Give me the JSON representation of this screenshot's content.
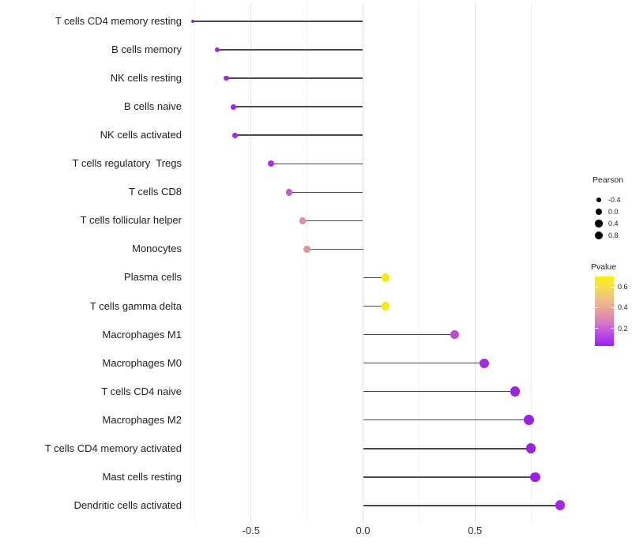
{
  "chart_data": {
    "type": "lollipop",
    "title": "",
    "xlabel": "",
    "ylabel": "",
    "x_ticks": [
      {
        "value": -0.5,
        "label": "-0.5"
      },
      {
        "value": 0.0,
        "label": "0.0"
      },
      {
        "value": 0.5,
        "label": "0.5"
      }
    ],
    "minor_gridlines": [
      -0.75,
      -0.25,
      0.25,
      0.75
    ],
    "xlim": [
      -0.785,
      0.93
    ],
    "rows": [
      {
        "label": "T cells CD4 memory resting",
        "pearson": -0.76,
        "pvalue": 0.001,
        "color": "#9a1fe4"
      },
      {
        "label": "B cells memory",
        "pearson": -0.65,
        "pvalue": 0.01,
        "color": "#9f27e0"
      },
      {
        "label": "NK cells resting",
        "pearson": -0.61,
        "pvalue": 0.015,
        "color": "#a029df"
      },
      {
        "label": "B cells naive",
        "pearson": -0.58,
        "pvalue": 0.02,
        "color": "#a12adf"
      },
      {
        "label": "NK cells activated",
        "pearson": -0.57,
        "pvalue": 0.022,
        "color": "#a12adf"
      },
      {
        "label": "T cells regulatory  Tregs",
        "pearson": -0.41,
        "pvalue": 0.065,
        "color": "#a832dc"
      },
      {
        "label": "T cells CD8",
        "pearson": -0.33,
        "pvalue": 0.22,
        "color": "#c25fc7"
      },
      {
        "label": "T cells follicular helper",
        "pearson": -0.27,
        "pvalue": 0.3,
        "color": "#dd8da5"
      },
      {
        "label": "Monocytes",
        "pearson": -0.25,
        "pvalue": 0.33,
        "color": "#e0929b"
      },
      {
        "label": "Plasma cells",
        "pearson": 0.1,
        "pvalue": 0.67,
        "color": "#f4ee00"
      },
      {
        "label": "T cells gamma delta",
        "pearson": 0.1,
        "pvalue": 0.66,
        "color": "#f2ec08"
      },
      {
        "label": "Macrophages M1",
        "pearson": 0.41,
        "pvalue": 0.13,
        "color": "#b44fd8"
      },
      {
        "label": "Macrophages M0",
        "pearson": 0.54,
        "pvalue": 0.04,
        "color": "#a42ce1"
      },
      {
        "label": "T cells CD4 naive",
        "pearson": 0.68,
        "pvalue": 0.012,
        "color": "#9e24e3"
      },
      {
        "label": "Macrophages M2",
        "pearson": 0.74,
        "pvalue": 0.006,
        "color": "#9c21e5"
      },
      {
        "label": "T cells CD4 memory activated",
        "pearson": 0.75,
        "pvalue": 0.006,
        "color": "#9c21e5"
      },
      {
        "label": "Mast cells resting",
        "pearson": 0.77,
        "pvalue": 0.004,
        "color": "#9b20e6"
      },
      {
        "label": "Dendritic cells activated",
        "pearson": 0.88,
        "pvalue": 0.001,
        "color": "#a326e9"
      }
    ],
    "legend_size": {
      "title": "Pearson",
      "entries": [
        {
          "value": -0.4,
          "label": "-0.4"
        },
        {
          "value": 0.0,
          "label": "0.0"
        },
        {
          "value": 0.4,
          "label": "0.4"
        },
        {
          "value": 0.8,
          "label": "0.8"
        }
      ],
      "dot_color": "#000000"
    },
    "legend_color": {
      "title": "Pvalue",
      "range": [
        0.03,
        0.7
      ],
      "ticks": [
        {
          "value": 0.6,
          "label": "0.6"
        },
        {
          "value": 0.4,
          "label": "0.4"
        },
        {
          "value": 0.2,
          "label": "0.2"
        }
      ],
      "gradient_top_to_bottom": [
        {
          "stop": 0.0,
          "color": "#faf00a"
        },
        {
          "stop": 0.15,
          "color": "#f6de4e"
        },
        {
          "stop": 0.3,
          "color": "#f1c47e"
        },
        {
          "stop": 0.43,
          "color": "#eaaa96"
        },
        {
          "stop": 0.55,
          "color": "#e392a6"
        },
        {
          "stop": 0.67,
          "color": "#d678c2"
        },
        {
          "stop": 0.78,
          "color": "#c457dc"
        },
        {
          "stop": 0.9,
          "color": "#b038ea"
        },
        {
          "stop": 1.0,
          "color": "#a01ff3"
        }
      ]
    },
    "style_colors": {
      "grid_major": "#e2e2e2",
      "grid_minor": "#f1f1f1",
      "stem": "#4a4a4a",
      "axis_text": "#333333",
      "label_text": "#1f1f1f"
    }
  }
}
